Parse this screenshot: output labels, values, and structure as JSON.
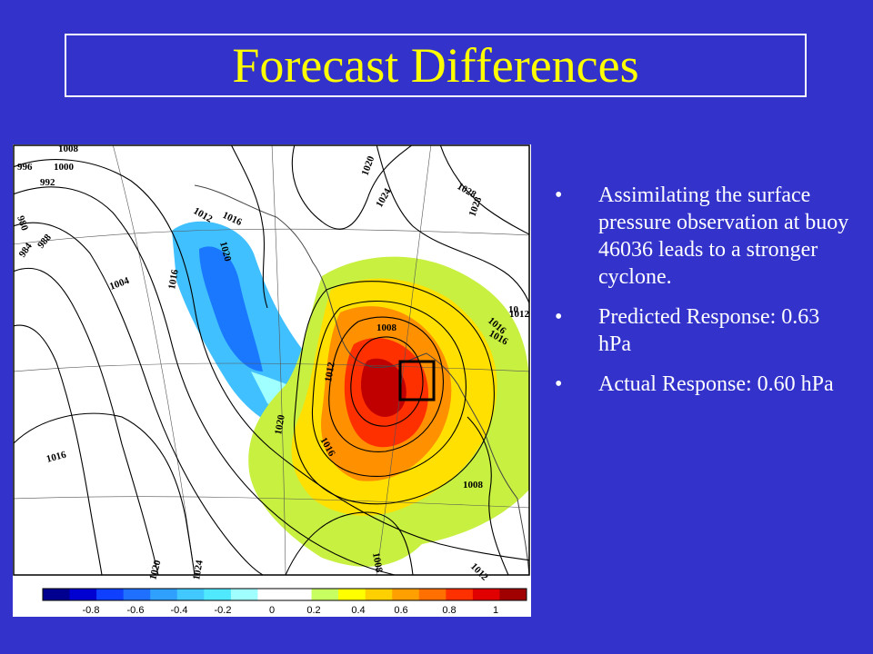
{
  "slide": {
    "title": "Forecast Differences",
    "bullets": [
      {
        "marker": "•",
        "text": "Assimilating the surface pressure observation at buoy 46036 leads to a stronger cyclone."
      },
      {
        "marker": "•",
        "text": "Predicted Response: 0.63 hPa"
      },
      {
        "marker": "•",
        "text": "Actual Response: 0.60 hPa"
      }
    ]
  },
  "map": {
    "contour_labels": [
      "1008",
      "1000",
      "996",
      "992",
      "980",
      "984",
      "988",
      "1004",
      "1012",
      "1016",
      "1020",
      "1008",
      "1016",
      "1020",
      "1024",
      "1028",
      "1028",
      "1008",
      "1016",
      "1012",
      "1020",
      "1016",
      "1016",
      "1020",
      "1024",
      "1008",
      "1012",
      "1016",
      "1012",
      "10"
    ],
    "colorbar": {
      "ticks": [
        "-0.8",
        "-0.6",
        "-0.4",
        "-0.2",
        "0",
        "0.2",
        "0.4",
        "0.6",
        "0.8",
        "1"
      ],
      "colors": [
        "#000090",
        "#0000d0",
        "#1040ff",
        "#2070ff",
        "#30a0ff",
        "#40c8ff",
        "#50e8ff",
        "#a0ffff",
        "#ffffff",
        "#ffffff",
        "#c8ff60",
        "#ffff00",
        "#ffd000",
        "#ffa000",
        "#ff7000",
        "#ff3000",
        "#e00000",
        "#a00000"
      ]
    }
  }
}
